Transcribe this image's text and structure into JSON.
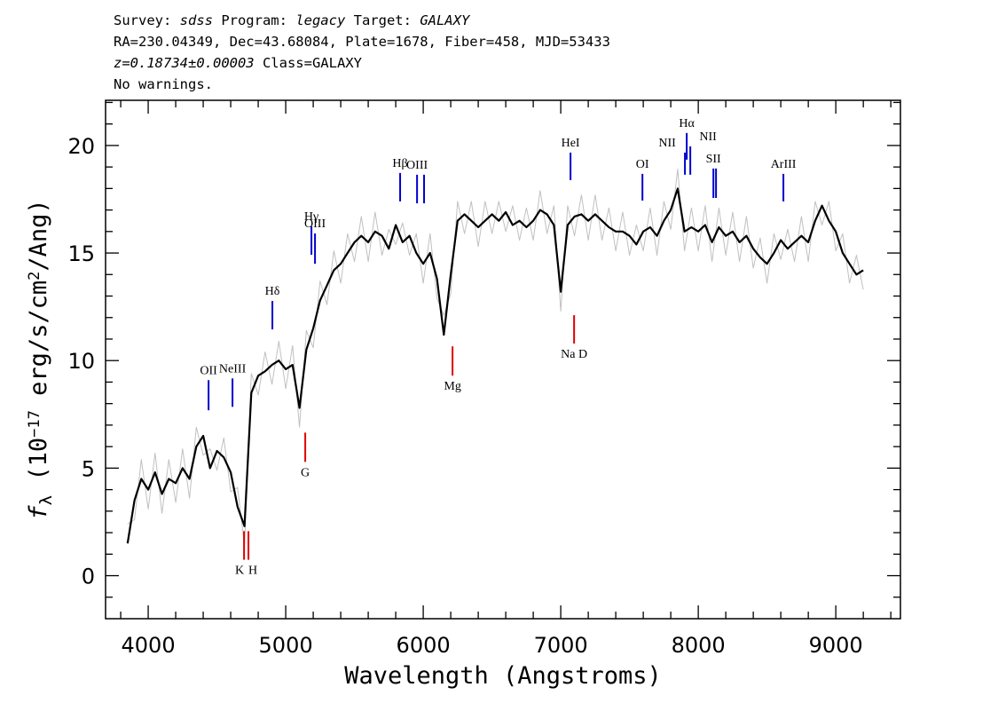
{
  "chart_data": {
    "type": "line",
    "header": [
      [
        {
          "text": "Survey: "
        },
        {
          "text": "sdss",
          "italic": true
        },
        {
          "text": " Program: "
        },
        {
          "text": "legacy",
          "italic": true
        },
        {
          "text": " Target: "
        },
        {
          "text": "GALAXY",
          "italic": true
        }
      ],
      [
        {
          "text": "RA=230.04349, Dec=43.68084, Plate=1678, Fiber=458, MJD=53433"
        }
      ],
      [
        {
          "text": "z=0.18734±0.00003",
          "italic": true
        },
        {
          "text": " Class=GALAXY"
        }
      ],
      [
        {
          "text": "No warnings."
        }
      ]
    ],
    "xlabel": "Wavelength (Angstroms)",
    "ylabel": [
      {
        "text": "f",
        "italic": true
      },
      {
        "text": "λ",
        "sub": true
      },
      {
        "text": " (10"
      },
      {
        "text": "−17",
        "sup": true
      },
      {
        "text": " erg/s/cm"
      },
      {
        "text": "2",
        "sup": true
      },
      {
        "text": "/Ang)"
      }
    ],
    "xlim": [
      3690,
      9470
    ],
    "ylim": [
      -2,
      22.1
    ],
    "xticks": [
      4000,
      5000,
      6000,
      7000,
      8000,
      9000
    ],
    "xminorticks": [
      3800,
      4200,
      4400,
      4600,
      4800,
      5200,
      5400,
      5600,
      5800,
      6200,
      6400,
      6600,
      6800,
      7200,
      7400,
      7600,
      7800,
      8200,
      8400,
      8600,
      8800,
      9200,
      9400
    ],
    "yticks": [
      0,
      5,
      10,
      15,
      20
    ],
    "yminorticks": [
      -1,
      1,
      2,
      3,
      4,
      6,
      7,
      8,
      9,
      11,
      12,
      13,
      14,
      16,
      17,
      18,
      19,
      21,
      22
    ],
    "x": [
      3850,
      3900,
      3950,
      4000,
      4050,
      4100,
      4150,
      4200,
      4250,
      4300,
      4350,
      4400,
      4450,
      4500,
      4550,
      4600,
      4650,
      4700,
      4750,
      4800,
      4850,
      4900,
      4950,
      5000,
      5050,
      5100,
      5150,
      5200,
      5250,
      5300,
      5350,
      5400,
      5450,
      5500,
      5550,
      5600,
      5650,
      5700,
      5750,
      5800,
      5850,
      5900,
      5950,
      6000,
      6050,
      6100,
      6150,
      6200,
      6250,
      6300,
      6350,
      6400,
      6450,
      6500,
      6550,
      6600,
      6650,
      6700,
      6750,
      6800,
      6850,
      6900,
      6950,
      7000,
      7050,
      7100,
      7150,
      7200,
      7250,
      7300,
      7350,
      7400,
      7450,
      7500,
      7550,
      7600,
      7650,
      7700,
      7750,
      7800,
      7850,
      7900,
      7950,
      8000,
      8050,
      8100,
      8150,
      8200,
      8250,
      8300,
      8350,
      8400,
      8450,
      8500,
      8550,
      8600,
      8650,
      8700,
      8750,
      8800,
      8850,
      8900,
      8950,
      9000,
      9050,
      9100,
      9150,
      9200
    ],
    "series": [
      {
        "color": "#c0c0c0",
        "width": 1,
        "values": [
          2.4,
          2.6,
          5.4,
          3.1,
          5.7,
          2.9,
          5.4,
          3.4,
          5.9,
          3.6,
          6.9,
          5.6,
          5.9,
          4.9,
          6.4,
          3.9,
          4.1,
          1.4,
          9.4,
          8.4,
          10.4,
          8.9,
          10.9,
          8.7,
          10.7,
          6.9,
          11.4,
          10.6,
          13.7,
          12.6,
          15.1,
          13.6,
          15.9,
          14.6,
          16.7,
          14.6,
          16.9,
          14.9,
          16.1,
          15.4,
          16.4,
          14.9,
          15.9,
          13.6,
          15.9,
          12.9,
          12.1,
          13.1,
          17.4,
          15.9,
          17.4,
          15.3,
          17.4,
          15.9,
          17.4,
          16.0,
          17.2,
          15.6,
          17.1,
          15.6,
          17.9,
          15.9,
          17.2,
          12.3,
          17.2,
          15.8,
          17.7,
          15.6,
          17.7,
          15.6,
          17.1,
          15.1,
          16.9,
          14.9,
          16.3,
          15.1,
          17.1,
          14.9,
          17.4,
          16.1,
          18.9,
          15.1,
          17.1,
          15.1,
          17.2,
          14.6,
          17.1,
          14.9,
          16.9,
          14.6,
          16.7,
          14.3,
          15.7,
          13.6,
          15.9,
          14.7,
          16.1,
          14.6,
          16.7,
          14.6,
          17.4,
          16.3,
          17.4,
          15.1,
          15.9,
          13.6,
          14.9,
          13.3
        ]
      },
      {
        "color": "#000000",
        "width": 2.2,
        "values": [
          1.5,
          3.5,
          4.5,
          4.0,
          4.8,
          3.8,
          4.5,
          4.3,
          5.0,
          4.5,
          6.0,
          6.5,
          5.0,
          5.8,
          5.5,
          4.8,
          3.2,
          2.3,
          8.5,
          9.3,
          9.5,
          9.8,
          10.0,
          9.6,
          9.8,
          7.8,
          10.5,
          11.5,
          12.8,
          13.5,
          14.2,
          14.5,
          15.0,
          15.5,
          15.8,
          15.5,
          16.0,
          15.8,
          15.2,
          16.3,
          15.5,
          15.8,
          15.0,
          14.5,
          15.0,
          13.8,
          11.2,
          14.0,
          16.5,
          16.8,
          16.5,
          16.2,
          16.5,
          16.8,
          16.5,
          16.9,
          16.3,
          16.5,
          16.2,
          16.5,
          17.0,
          16.8,
          16.3,
          13.2,
          16.3,
          16.7,
          16.8,
          16.5,
          16.8,
          16.5,
          16.2,
          16.0,
          16.0,
          15.8,
          15.4,
          16.0,
          16.2,
          15.8,
          16.5,
          17.0,
          18.0,
          16.0,
          16.2,
          16.0,
          16.3,
          15.5,
          16.2,
          15.8,
          16.0,
          15.5,
          15.8,
          15.2,
          14.8,
          14.5,
          15.0,
          15.6,
          15.2,
          15.5,
          15.8,
          15.5,
          16.5,
          17.2,
          16.5,
          16.0,
          15.0,
          14.5,
          14.0,
          14.2
        ]
      }
    ],
    "lines": [
      {
        "label": "OII",
        "x": 4439,
        "y0": 7.69,
        "y1": 9.09,
        "color": "#0000cc"
      },
      {
        "label": "NeIII",
        "x": 4613,
        "y0": 7.85,
        "y1": 9.17,
        "color": "#0000cc"
      },
      {
        "label": "Hδ",
        "x": 4903,
        "y0": 11.45,
        "y1": 12.77,
        "color": "#0000cc"
      },
      {
        "label": "Hγ",
        "x": 5187,
        "y0": 14.92,
        "y1": 16.24,
        "color": "#0000cc"
      },
      {
        "label": "OIII",
        "x": 5213,
        "y0": 14.5,
        "y1": 15.91,
        "color": "#0000cc"
      },
      {
        "label": "Hβ",
        "x": 5832,
        "y0": 17.4,
        "y1": 18.72,
        "color": "#0000cc"
      },
      {
        "label": "OIII",
        "x": 5955,
        "y0": 17.31,
        "y1": 18.64,
        "color": "#0000cc"
      },
      {
        "x": 6006,
        "y0": 17.31,
        "y1": 18.64,
        "color": "#0000cc"
      },
      {
        "label": "HeI",
        "x": 7071,
        "y0": 18.39,
        "y1": 19.67,
        "color": "#0000cc"
      },
      {
        "label": "OI",
        "x": 7594,
        "y0": 17.44,
        "y1": 18.68,
        "color": "#0000cc"
      },
      {
        "label": "NII",
        "x": 7903,
        "y0": 18.64,
        "y1": 19.67,
        "color": "#0000cc"
      },
      {
        "label": "Hα",
        "x": 7916,
        "y0": 19.34,
        "y1": 20.58,
        "color": "#0000cc"
      },
      {
        "label": "NII",
        "x": 7942,
        "y0": 18.64,
        "y1": 19.96,
        "color": "#0000cc"
      },
      {
        "label": "SII",
        "x": 8110,
        "y0": 17.56,
        "y1": 18.93,
        "color": "#0000cc"
      },
      {
        "x": 8129,
        "y0": 17.56,
        "y1": 18.93,
        "color": "#0000cc"
      },
      {
        "label": "ArIII",
        "x": 8619,
        "y0": 17.4,
        "y1": 18.68,
        "color": "#0000cc"
      },
      {
        "label": "K",
        "x": 4697,
        "y0": 0.74,
        "y1": 2.07,
        "color": "#e00000",
        "below": true
      },
      {
        "label": "H",
        "x": 4729,
        "y0": 0.74,
        "y1": 2.07,
        "color": "#e00000",
        "below": true
      },
      {
        "label": "G",
        "x": 5142,
        "y0": 5.29,
        "y1": 6.65,
        "color": "#e00000",
        "below": true
      },
      {
        "label": "Mg",
        "x": 6213,
        "y0": 9.3,
        "y1": 10.66,
        "color": "#e00000",
        "below": true
      },
      {
        "label": "Na D",
        "x": 7097,
        "y0": 10.79,
        "y1": 12.11,
        "color": "#e00000",
        "below": true
      }
    ]
  }
}
